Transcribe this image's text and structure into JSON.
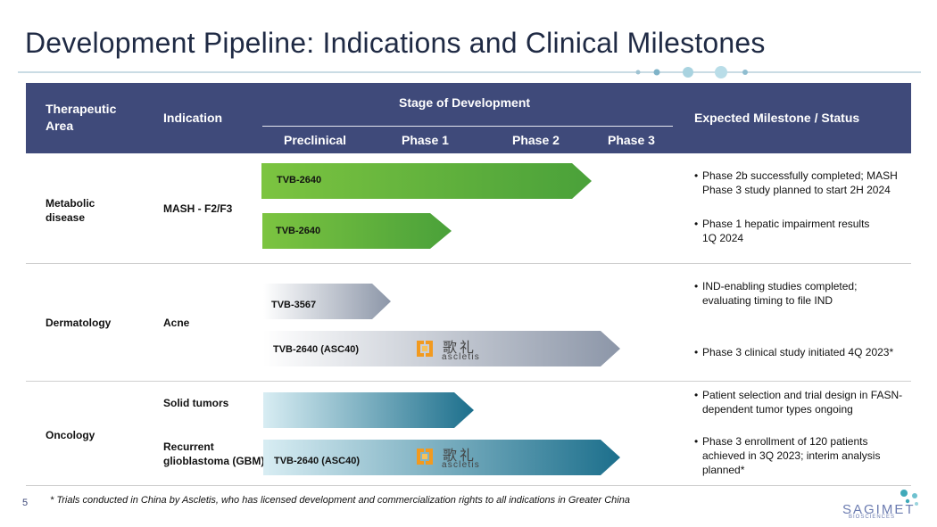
{
  "title": "Development Pipeline: Indications and Clinical Milestones",
  "colors": {
    "header_bg": "#3f4a7a",
    "green_start": "#7cc440",
    "green_end": "#4aa13a",
    "gray": "#8c96a8",
    "teal": "#1c6f8c"
  },
  "header": {
    "therapeutic_area": "Therapeutic Area",
    "indication": "Indication",
    "stage": "Stage of Development",
    "phases": [
      "Preclinical",
      "Phase 1",
      "Phase 2",
      "Phase 3"
    ],
    "milestone": "Expected Milestone / Status"
  },
  "rows": [
    {
      "area": "Metabolic disease",
      "indications": [
        "MASH - F2/F3"
      ],
      "programs": [
        {
          "label": "TVB-2640",
          "progress": 0.98,
          "milestone": "Phase 2b successfully completed; MASH Phase 3 study planned to start 2H 2024"
        },
        {
          "label": "TVB-2640",
          "progress": 0.59,
          "milestone": "Phase 1 hepatic impairment results 1Q 2024"
        }
      ]
    },
    {
      "area": "Dermatology",
      "indications": [
        "Acne"
      ],
      "programs": [
        {
          "label": "TVB-3567",
          "progress": 0.39,
          "milestone": "IND-enabling studies completed; evaluating timing to file IND"
        },
        {
          "label": "TVB-2640 (ASC40)",
          "progress": 1.0,
          "partner": {
            "cn": "歌礼",
            "en": "ascletis"
          },
          "milestone": "Phase 3 clinical study initiated 4Q 2023*"
        }
      ]
    },
    {
      "area": "Oncology",
      "indications": [
        "Solid tumors",
        "Recurrent glioblastoma (GBM)"
      ],
      "programs": [
        {
          "label": "",
          "progress": 0.62,
          "milestone": "Patient selection and trial design in FASN-dependent tumor types ongoing"
        },
        {
          "label": "TVB-2640 (ASC40)",
          "progress": 1.0,
          "partner": {
            "cn": "歌礼",
            "en": "ascletis"
          },
          "milestone": "Phase 3 enrollment  of 120 patients achieved in 3Q 2023; interim analysis planned*"
        }
      ]
    }
  ],
  "footnote": "* Trials conducted in China by Ascletis, who has licensed development and commercialization rights to all indications in Greater China",
  "page_number": "5",
  "brand": {
    "name": "SAGIMET",
    "sub": "BIOSCIENCES"
  }
}
